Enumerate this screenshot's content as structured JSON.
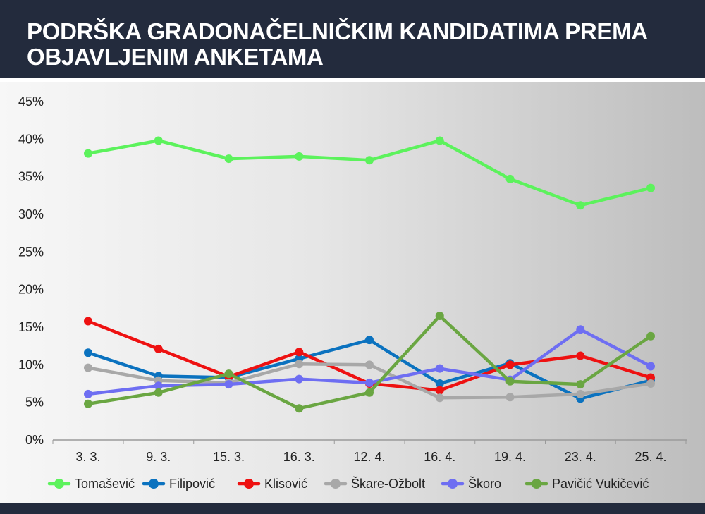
{
  "title": {
    "line1": "PODRŠKA GRADONAČELNIČKIM KANDIDATIMA PREMA",
    "line2": "OBJAVLJENIM ANKETAMA"
  },
  "chart_data": {
    "type": "line",
    "title": "PODRŠKA GRADONAČELNIČKIM KANDIDATIMA PREMA OBJAVLJENIM ANKETAMA",
    "categories": [
      "3. 3.",
      "9. 3.",
      "15. 3.",
      "16. 3.",
      "12. 4.",
      "16. 4.",
      "19. 4.",
      "23. 4.",
      "25. 4."
    ],
    "y_ticks": [
      "0%",
      "5%",
      "10%",
      "15%",
      "20%",
      "25%",
      "30%",
      "35%",
      "40%",
      "45%"
    ],
    "ylim": [
      0,
      45
    ],
    "grid": false,
    "legend_position": "bottom",
    "series": [
      {
        "name": "Tomašević",
        "color": "#5cf25c",
        "values": [
          38.1,
          39.8,
          37.4,
          37.7,
          37.2,
          39.8,
          34.7,
          31.2,
          33.5
        ]
      },
      {
        "name": "Filipović",
        "color": "#0b72bf",
        "values": [
          11.6,
          8.5,
          8.3,
          10.8,
          13.3,
          7.5,
          10.2,
          5.5,
          7.9
        ]
      },
      {
        "name": "Klisović",
        "color": "#ee1111",
        "values": [
          15.8,
          12.1,
          8.4,
          11.7,
          7.5,
          6.6,
          10.0,
          11.2,
          8.3
        ]
      },
      {
        "name": "Škare-Ožbolt",
        "color": "#a8a8a8",
        "values": [
          9.6,
          7.9,
          7.6,
          10.1,
          10.0,
          5.6,
          5.7,
          6.1,
          7.5
        ]
      },
      {
        "name": "Škoro",
        "color": "#6e6ef2",
        "values": [
          6.1,
          7.2,
          7.4,
          8.1,
          7.6,
          9.5,
          8.0,
          14.7,
          9.8
        ]
      },
      {
        "name": "Pavičić Vukičević",
        "color": "#6aa642",
        "values": [
          4.8,
          6.3,
          8.8,
          4.2,
          6.3,
          16.5,
          7.8,
          7.4,
          13.8
        ]
      }
    ]
  }
}
